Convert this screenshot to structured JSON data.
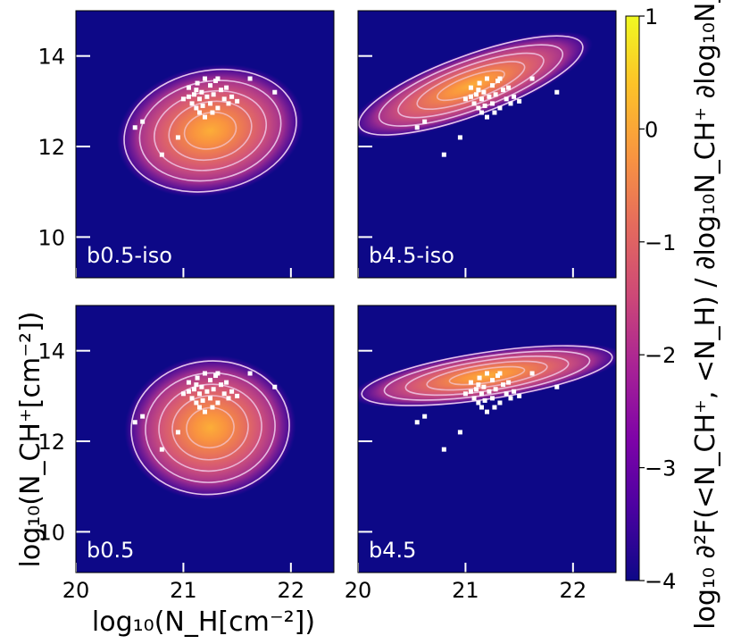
{
  "chart_data": {
    "type": "heatmap",
    "title": "",
    "xlabel": "log₁₀(N_H[cm⁻²])",
    "ylabel": "log₁₀(N_CH⁺[cm⁻²])",
    "xlim": [
      20,
      22.4
    ],
    "ylim": [
      9.1,
      15.0
    ],
    "x_ticks": [
      "20",
      "21",
      "22"
    ],
    "y_ticks": [
      "10",
      "12",
      "14"
    ],
    "colorbar": {
      "label": "log₁₀ ∂²F(<N_CH⁺, <N_H) / ∂log₁₀N_CH⁺ ∂log₁₀N_H",
      "range": [
        -4,
        1
      ],
      "ticks": [
        "1",
        "0",
        "−1",
        "−2",
        "−3",
        "−4"
      ],
      "colormap": "plasma"
    },
    "panels": [
      {
        "label": "b0.5-iso",
        "peak": [
          21.25,
          12.35
        ],
        "spread": [
          0.55,
          0.9
        ],
        "tilt": -0.2
      },
      {
        "label": "b4.5-iso",
        "peak": [
          21.05,
          13.35
        ],
        "spread": [
          0.75,
          0.45
        ],
        "tilt": -0.35
      },
      {
        "label": "b0.5",
        "peak": [
          21.25,
          12.3
        ],
        "spread": [
          0.5,
          1.0
        ],
        "tilt": -0.1
      },
      {
        "label": "b4.5",
        "peak": [
          21.2,
          13.45
        ],
        "spread": [
          0.8,
          0.35
        ],
        "tilt": -0.15
      }
    ],
    "observations": [
      [
        20.55,
        12.42
      ],
      [
        20.62,
        12.55
      ],
      [
        20.8,
        11.82
      ],
      [
        20.95,
        12.2
      ],
      [
        21.0,
        13.05
      ],
      [
        21.05,
        13.3
      ],
      [
        21.08,
        12.95
      ],
      [
        21.1,
        13.15
      ],
      [
        21.12,
        12.85
      ],
      [
        21.13,
        13.4
      ],
      [
        21.15,
        12.75
      ],
      [
        21.15,
        13.05
      ],
      [
        21.17,
        13.2
      ],
      [
        21.18,
        12.9
      ],
      [
        21.2,
        13.5
      ],
      [
        21.2,
        12.65
      ],
      [
        21.22,
        13.1
      ],
      [
        21.25,
        13.35
      ],
      [
        21.25,
        12.95
      ],
      [
        21.28,
        13.15
      ],
      [
        21.3,
        13.45
      ],
      [
        21.32,
        12.85
      ],
      [
        21.35,
        13.25
      ],
      [
        21.38,
        13.05
      ],
      [
        21.4,
        13.3
      ],
      [
        21.45,
        13.1
      ],
      [
        21.5,
        13.0
      ],
      [
        21.62,
        13.5
      ],
      [
        21.85,
        13.2
      ],
      [
        21.05,
        13.1
      ],
      [
        21.12,
        13.25
      ],
      [
        21.27,
        12.75
      ],
      [
        21.32,
        13.5
      ],
      [
        21.42,
        12.95
      ]
    ]
  }
}
